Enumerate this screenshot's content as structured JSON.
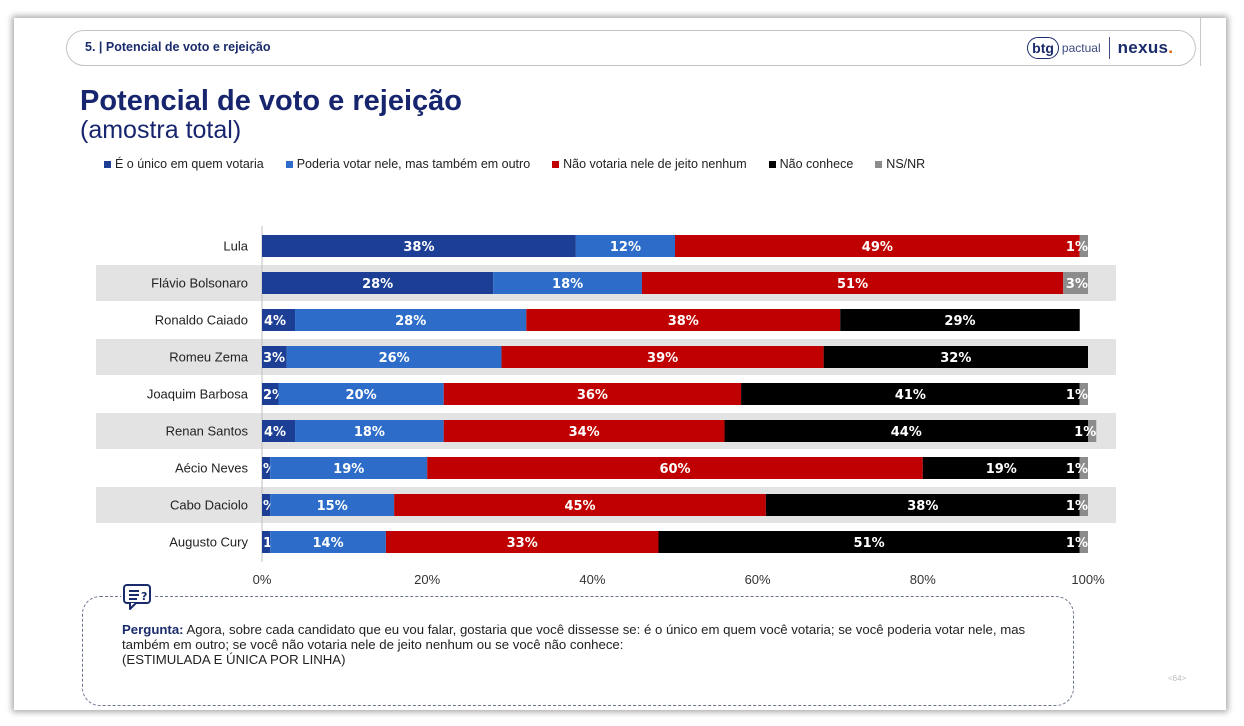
{
  "header": {
    "section_title": "5. | Potencial de voto e rejeição",
    "logo_btg": "btg",
    "logo_pactual": "pactual",
    "logo_nexus": "nexus",
    "logo_nexus_dot": "."
  },
  "title": "Potencial de voto e rejeição",
  "subtitle": "(amostra total)",
  "question": {
    "label": "Pergunta:",
    "text": "Agora, sobre cada candidato que eu vou falar, gostaria que você dissesse se: é o único em quem você votaria; se você poderia votar nele, mas também em outro; se você não votaria nele de jeito nenhum ou se você não conhece:",
    "note": "(ESTIMULADA E ÚNICA POR LINHA)"
  },
  "page_number": "<64>",
  "colors": {
    "only": "#1c3f95",
    "could": "#2d6dc9",
    "would_not": "#c00000",
    "unknown": "#000000",
    "nsnr": "#8c8c8c",
    "band": "#e3e3e3"
  },
  "chart_data": {
    "type": "bar",
    "orientation": "horizontal",
    "stacked": true,
    "categories": [
      "Lula",
      "Flávio Bolsonaro",
      "Ronaldo Caiado",
      "Romeu Zema",
      "Joaquim Barbosa",
      "Renan Santos",
      "Aécio Neves",
      "Cabo Daciolo",
      "Augusto Cury"
    ],
    "series": [
      {
        "name": "É o único em quem votaria",
        "values": [
          38,
          28,
          4,
          3,
          2,
          4,
          1,
          1,
          1
        ],
        "labels": [
          "38%",
          "28%",
          "4%",
          "3%",
          "2%",
          "4%",
          "%",
          "%",
          "1%"
        ]
      },
      {
        "name": "Poderia votar nele, mas também em outro",
        "values": [
          12,
          18,
          28,
          26,
          20,
          18,
          19,
          15,
          14
        ],
        "labels": [
          "12%",
          "18%",
          "28%",
          "26%",
          "20%",
          "18%",
          "19%",
          "15%",
          "14%"
        ]
      },
      {
        "name": "Não votaria nele de jeito nenhum",
        "values": [
          49,
          51,
          38,
          39,
          36,
          34,
          60,
          45,
          33
        ],
        "labels": [
          "49%",
          "51%",
          "38%",
          "39%",
          "36%",
          "34%",
          "60%",
          "45%",
          "33%"
        ]
      },
      {
        "name": "Não conhece",
        "values": [
          0,
          0,
          29,
          32,
          41,
          44,
          19,
          38,
          51
        ],
        "labels": [
          "",
          "",
          "29%",
          "32%",
          "41%",
          "44%",
          "19%",
          "38%",
          "51%"
        ]
      },
      {
        "name": "NS/NR",
        "values": [
          1,
          3,
          0,
          0,
          1,
          1,
          1,
          1,
          1
        ],
        "labels": [
          "1%",
          "3%",
          "",
          "",
          "1%",
          "1%",
          "1%",
          "1%",
          "1%"
        ]
      }
    ],
    "xlim": [
      0,
      100
    ],
    "xticks": [
      "0%",
      "20%",
      "40%",
      "60%",
      "80%",
      "100%"
    ],
    "legend_position": "top",
    "grid": false,
    "banded_rows": true
  }
}
